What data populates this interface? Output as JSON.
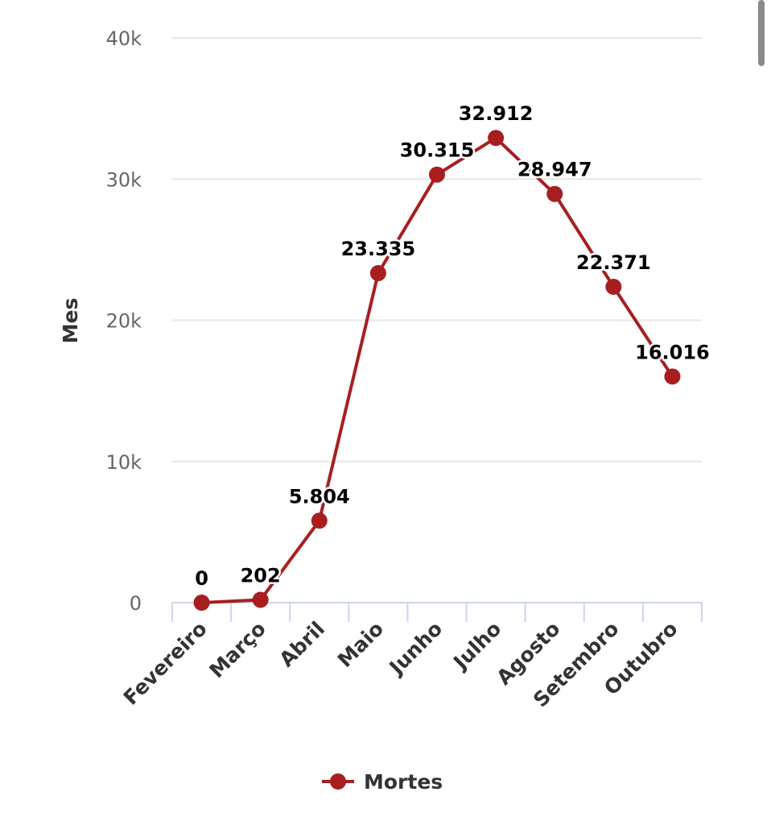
{
  "chart_data": {
    "type": "line",
    "title": "",
    "xlabel": "",
    "ylabel": "Mes",
    "categories": [
      "Fevereiro",
      "Março",
      "Abril",
      "Maio",
      "Junho",
      "Julho",
      "Agosto",
      "Setembro",
      "Outubro"
    ],
    "series": [
      {
        "name": "Mortes",
        "values": [
          0,
          202,
          5804,
          23335,
          30315,
          32912,
          28947,
          22371,
          16016
        ],
        "data_labels": [
          "0",
          "202",
          "5.804",
          "23.335",
          "30.315",
          "32.912",
          "28.947",
          "22.371",
          "16.016"
        ],
        "color": "#a81e1e"
      }
    ],
    "ylim": [
      0,
      40000
    ],
    "y_ticks": [
      0,
      10000,
      20000,
      30000,
      40000
    ],
    "y_tick_labels": [
      "0",
      "10k",
      "20k",
      "30k",
      "40k"
    ],
    "grid": true,
    "legend": "bottom-center"
  }
}
